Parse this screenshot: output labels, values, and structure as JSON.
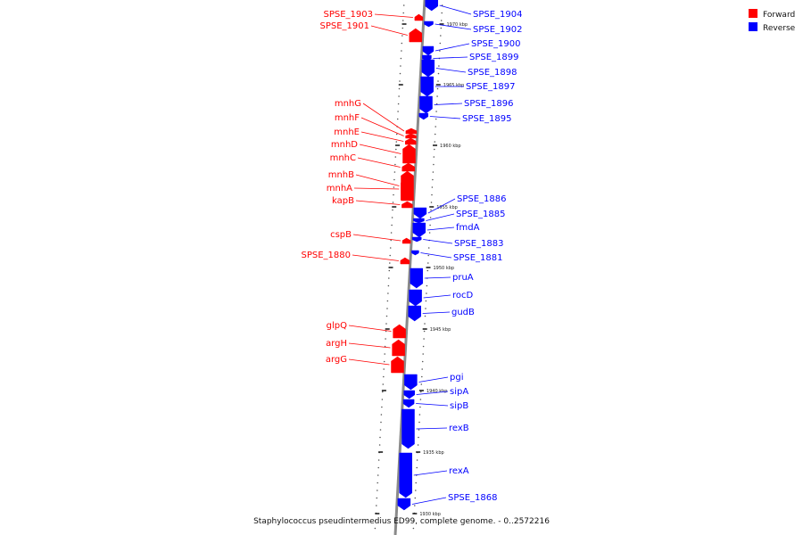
{
  "colors": {
    "forward": "#ff0000",
    "reverse": "#0000ff",
    "backbone": "#8a8a8a"
  },
  "legend": [
    {
      "key": "forward",
      "label": "Forward",
      "color": "#ff0000"
    },
    {
      "key": "reverse",
      "label": "Reverse",
      "color": "#0000ff"
    }
  ],
  "caption": "Staphylococcus pseudintermedius ED99, complete genome. - 0..2572216",
  "ticks": [
    {
      "label": "1970 kbp",
      "kbp": 1970
    },
    {
      "label": "1965 kbp",
      "kbp": 1965
    },
    {
      "label": "1960 kbp",
      "kbp": 1960
    },
    {
      "label": "1955 kbp",
      "kbp": 1955
    },
    {
      "label": "1950 kbp",
      "kbp": 1950
    },
    {
      "label": "1945 kbp",
      "kbp": 1945
    },
    {
      "label": "1940 kbp",
      "kbp": 1940
    },
    {
      "label": "1935 kbp",
      "kbp": 1935
    },
    {
      "label": "1930 kbp",
      "kbp": 1930
    }
  ],
  "genes": [
    {
      "name": "SPSE_1904",
      "strand": "reverse"
    },
    {
      "name": "SPSE_1903",
      "strand": "forward"
    },
    {
      "name": "SPSE_1902",
      "strand": "reverse"
    },
    {
      "name": "SPSE_1901",
      "strand": "forward"
    },
    {
      "name": "SPSE_1900",
      "strand": "reverse"
    },
    {
      "name": "SPSE_1899",
      "strand": "reverse"
    },
    {
      "name": "SPSE_1898",
      "strand": "reverse"
    },
    {
      "name": "SPSE_1897",
      "strand": "reverse"
    },
    {
      "name": "SPSE_1896",
      "strand": "reverse"
    },
    {
      "name": "SPSE_1895",
      "strand": "reverse"
    },
    {
      "name": "mnhG",
      "strand": "forward"
    },
    {
      "name": "mnhF",
      "strand": "forward"
    },
    {
      "name": "mnhE",
      "strand": "forward"
    },
    {
      "name": "mnhD",
      "strand": "forward"
    },
    {
      "name": "mnhC",
      "strand": "forward"
    },
    {
      "name": "mnhB",
      "strand": "forward"
    },
    {
      "name": "mnhA",
      "strand": "forward"
    },
    {
      "name": "kapB",
      "strand": "forward"
    },
    {
      "name": "SPSE_1886",
      "strand": "reverse"
    },
    {
      "name": "SPSE_1885",
      "strand": "reverse"
    },
    {
      "name": "fmdA",
      "strand": "reverse"
    },
    {
      "name": "SPSE_1883",
      "strand": "reverse"
    },
    {
      "name": "SPSE_1881",
      "strand": "reverse"
    },
    {
      "name": "cspB",
      "strand": "forward"
    },
    {
      "name": "SPSE_1880",
      "strand": "forward"
    },
    {
      "name": "pruA",
      "strand": "reverse"
    },
    {
      "name": "rocD",
      "strand": "reverse"
    },
    {
      "name": "gudB",
      "strand": "reverse"
    },
    {
      "name": "glpQ",
      "strand": "forward"
    },
    {
      "name": "argH",
      "strand": "forward"
    },
    {
      "name": "argG",
      "strand": "forward"
    },
    {
      "name": "pgi",
      "strand": "reverse"
    },
    {
      "name": "sipA",
      "strand": "reverse"
    },
    {
      "name": "sipB",
      "strand": "reverse"
    },
    {
      "name": "rexB",
      "strand": "reverse"
    },
    {
      "name": "rexA",
      "strand": "reverse"
    },
    {
      "name": "SPSE_1868",
      "strand": "reverse"
    }
  ]
}
